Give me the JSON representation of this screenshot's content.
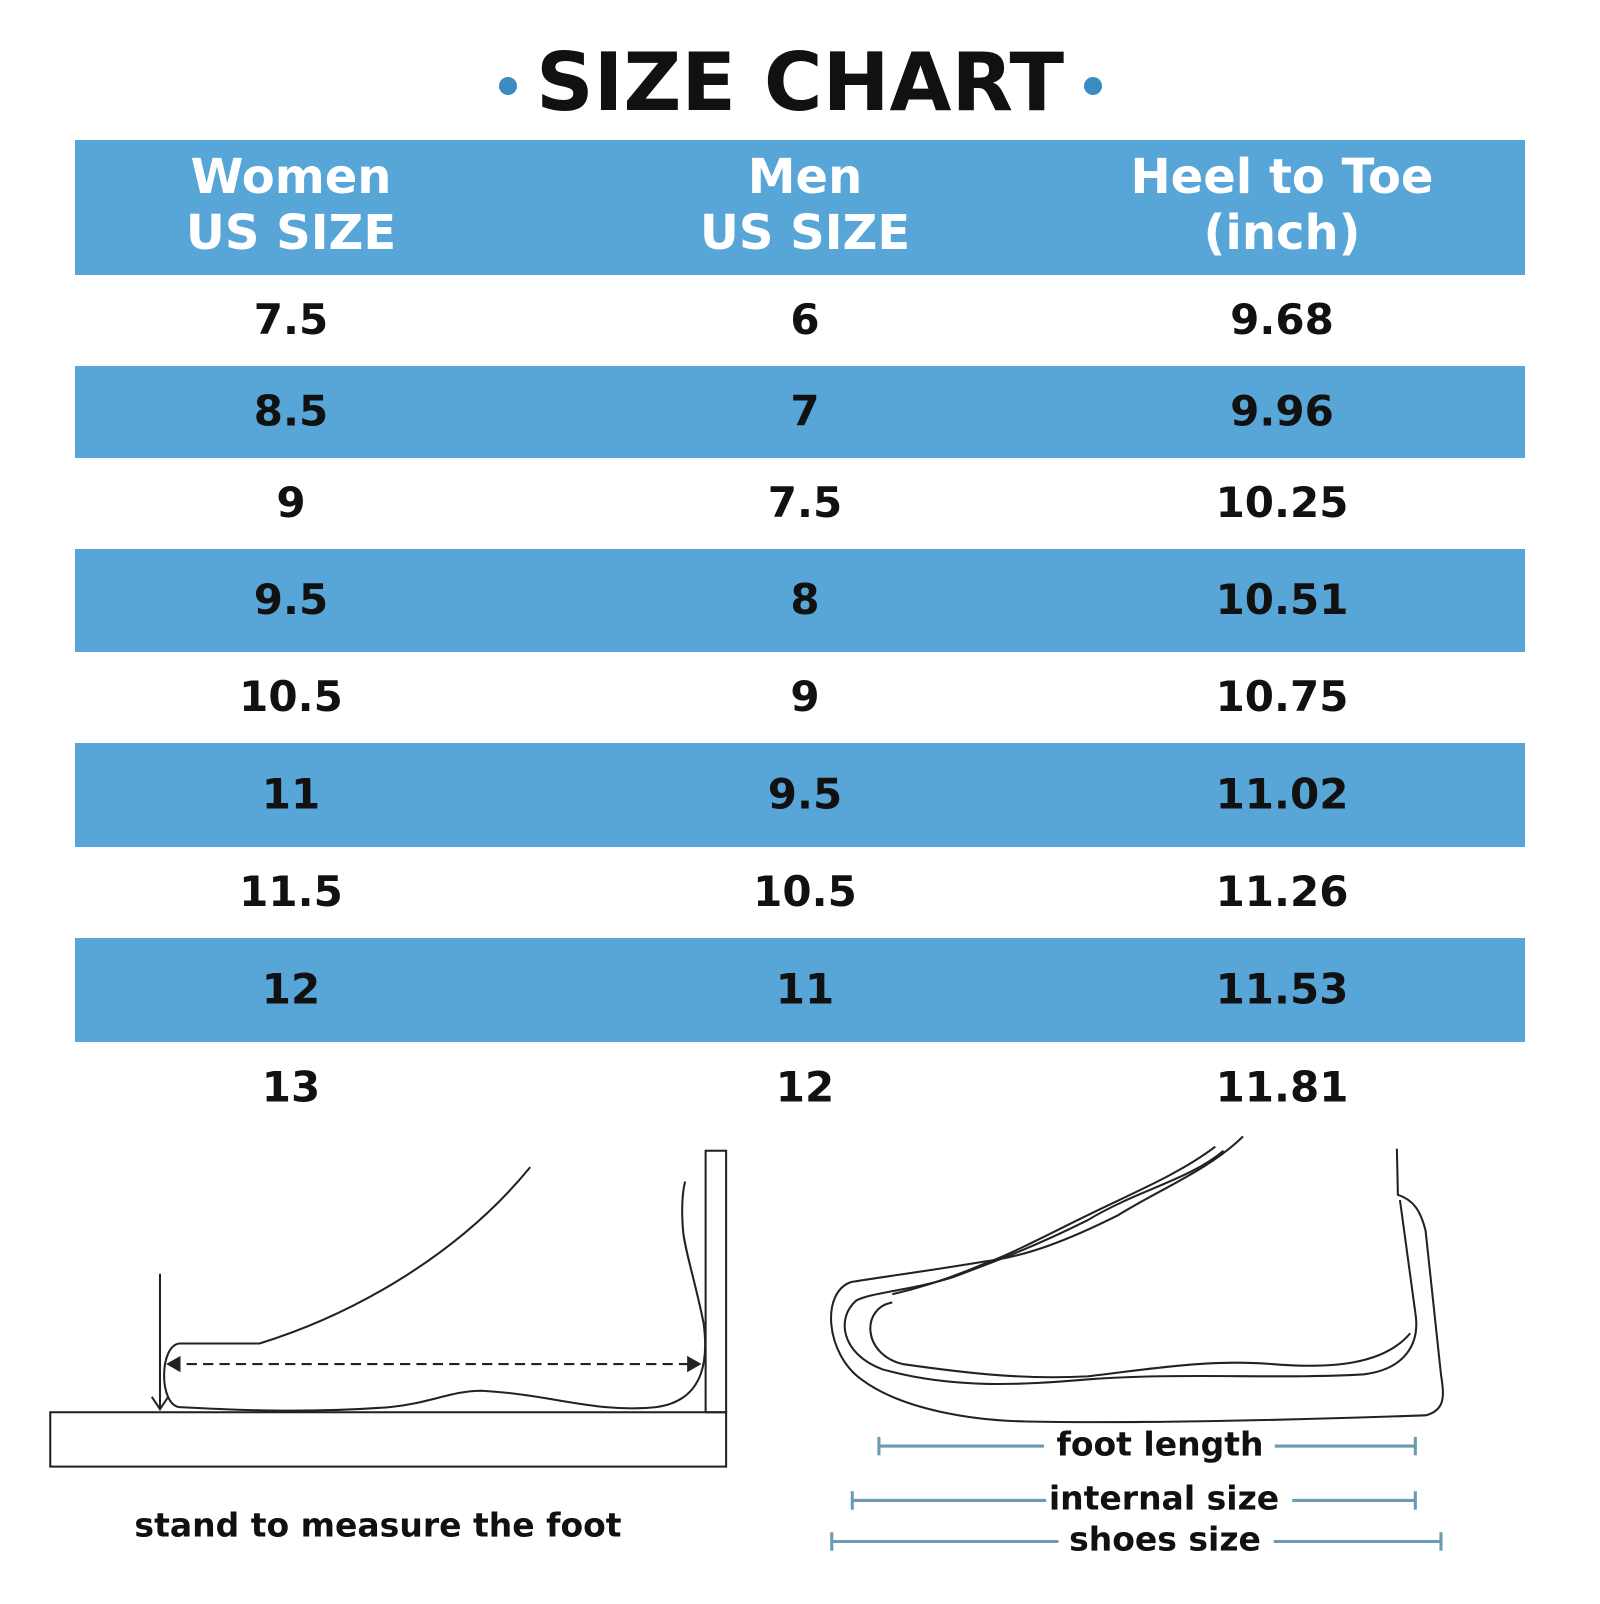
{
  "title": "SIZE CHART",
  "table": {
    "headers": [
      [
        "Women",
        "US SIZE"
      ],
      [
        "Men",
        "US SIZE"
      ],
      [
        "Heel to Toe",
        "(inch)"
      ]
    ],
    "rows": [
      [
        "7.5",
        "6",
        "9.68"
      ],
      [
        "8.5",
        "7",
        "9.96"
      ],
      [
        "9",
        "7.5",
        "10.25"
      ],
      [
        "9.5",
        "8",
        "10.51"
      ],
      [
        "10.5",
        "9",
        "10.75"
      ],
      [
        "11",
        "9.5",
        "11.02"
      ],
      [
        "11.5",
        "10.5",
        "11.26"
      ],
      [
        "12",
        "11",
        "11.53"
      ],
      [
        "13",
        "12",
        "11.81"
      ]
    ]
  },
  "measure_caption": "stand to measure the foot",
  "size_legend": [
    "foot length",
    "internal size",
    "shoes size"
  ]
}
